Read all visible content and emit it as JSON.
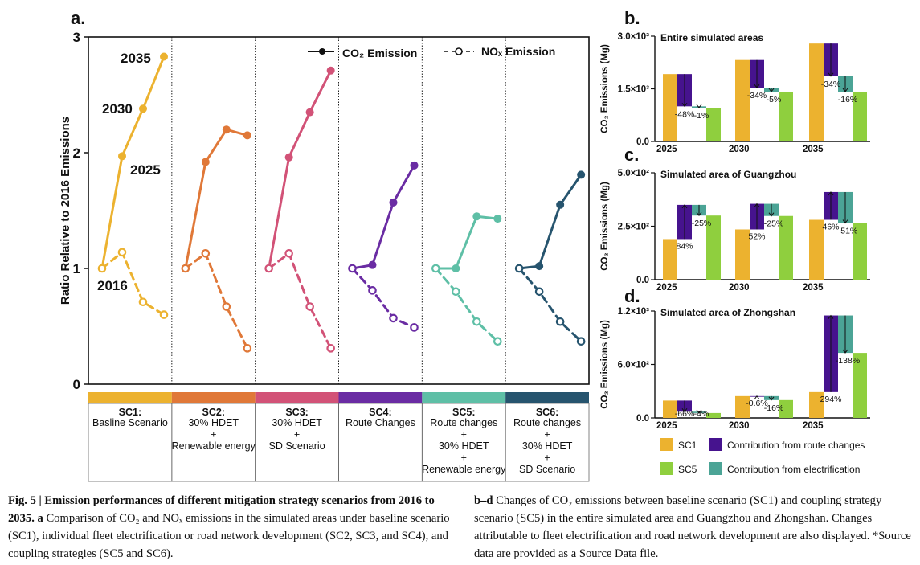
{
  "panel_a": {
    "label": "a.",
    "ylabel": "Ratio Relative to 2016 Emissions",
    "yticks": [
      "0",
      "1",
      "2",
      "3"
    ],
    "year_labels": [
      "2016",
      "2025",
      "2030",
      "2035"
    ],
    "legend": {
      "co2": "CO₂ Emission",
      "nox": "NOₓ Emission"
    },
    "scenarios": [
      {
        "code": "SC1:",
        "lines": [
          "Basline Scenario"
        ],
        "color": "#ecb22f"
      },
      {
        "code": "SC2:",
        "lines": [
          "30% HDET",
          "+",
          "Renewable energy"
        ],
        "color": "#e07838"
      },
      {
        "code": "SC3:",
        "lines": [
          "30% HDET",
          "+",
          "SD Scenario"
        ],
        "color": "#d25277"
      },
      {
        "code": "SC4:",
        "lines": [
          "Route Changes"
        ],
        "color": "#6a2ca3"
      },
      {
        "code": "SC5:",
        "lines": [
          "Route changes",
          "+",
          "30% HDET",
          "+",
          "Renewable energy"
        ],
        "color": "#5ebfa6"
      },
      {
        "code": "SC6:",
        "lines": [
          "Route changes",
          "+",
          "30% HDET",
          "+",
          "SD Scenario"
        ],
        "color": "#26546e"
      }
    ]
  },
  "panel_b": {
    "label": "b.",
    "title": "Entire simulated areas",
    "ylabel": "CO₂ Emissions (Mg)",
    "yticks": [
      "0.0",
      "1.5×10³",
      "3.0×10³"
    ]
  },
  "panel_c": {
    "label": "c.",
    "title": "Simulated area of Guangzhou",
    "ylabel": "CO₂ Emissions (Mg)",
    "yticks": [
      "0.0",
      "2.5×10²",
      "5.0×10²"
    ]
  },
  "panel_d": {
    "label": "d.",
    "title": "Simulated area of Zhongshan",
    "ylabel": "CO₂ Emissions (Mg)",
    "yticks": [
      "0.0",
      "6.0×10²",
      "1.2×10³"
    ]
  },
  "bar_legend": [
    {
      "name": "SC1",
      "color": "#ecb22f"
    },
    {
      "name": "Contribution from route changes",
      "color": "#46138e"
    },
    {
      "name": "SC5",
      "color": "#8fcf3e"
    },
    {
      "name": "Contribution from electrification",
      "color": "#4ba496"
    }
  ],
  "chart_data": [
    {
      "type": "line",
      "title": "",
      "ylabel": "Ratio Relative to 2016 Emissions",
      "ylim": [
        0,
        3
      ],
      "x": [
        2016,
        2025,
        2030,
        2035
      ],
      "panels": [
        {
          "name": "SC1",
          "series": [
            {
              "name": "CO₂ Emission",
              "values": [
                1.0,
                1.97,
                2.38,
                2.83
              ]
            },
            {
              "name": "NOₓ Emission",
              "values": [
                1.0,
                1.14,
                0.71,
                0.6
              ]
            }
          ]
        },
        {
          "name": "SC2",
          "series": [
            {
              "name": "CO₂ Emission",
              "values": [
                1.0,
                1.92,
                2.2,
                2.15
              ]
            },
            {
              "name": "NOₓ Emission",
              "values": [
                1.0,
                1.13,
                0.67,
                0.31
              ]
            }
          ]
        },
        {
          "name": "SC3",
          "series": [
            {
              "name": "CO₂ Emission",
              "values": [
                1.0,
                1.96,
                2.35,
                2.71
              ]
            },
            {
              "name": "NOₓ Emission",
              "values": [
                1.0,
                1.13,
                0.67,
                0.31
              ]
            }
          ]
        },
        {
          "name": "SC4",
          "series": [
            {
              "name": "CO₂ Emission",
              "values": [
                1.0,
                1.03,
                1.57,
                1.89
              ]
            },
            {
              "name": "NOₓ Emission",
              "values": [
                1.0,
                0.81,
                0.57,
                0.49
              ]
            }
          ]
        },
        {
          "name": "SC5",
          "series": [
            {
              "name": "CO₂ Emission",
              "values": [
                1.0,
                1.0,
                1.45,
                1.43
              ]
            },
            {
              "name": "NOₓ Emission",
              "values": [
                1.0,
                0.8,
                0.54,
                0.37
              ]
            }
          ]
        },
        {
          "name": "SC6",
          "series": [
            {
              "name": "CO₂ Emission",
              "values": [
                1.0,
                1.02,
                1.55,
                1.81
              ]
            },
            {
              "name": "NOₓ Emission",
              "values": [
                1.0,
                0.8,
                0.54,
                0.37
              ]
            }
          ]
        }
      ]
    },
    {
      "type": "bar",
      "title": "Entire simulated areas",
      "ylabel": "CO₂ Emissions (Mg)",
      "ylim": [
        0,
        3000
      ],
      "categories": [
        "2025",
        "2030",
        "2035"
      ],
      "series": [
        {
          "name": "SC1",
          "values": [
            1920,
            2320,
            2790
          ]
        },
        {
          "name": "SC5",
          "values": [
            960,
            1420,
            1420
          ]
        }
      ],
      "route_change": {
        "from": [
          1920,
          2320,
          2790
        ],
        "to": [
          1000,
          1530,
          1860
        ],
        "labels": [
          "-48%",
          "-34%",
          "-34%"
        ]
      },
      "electrification": {
        "from": [
          1000,
          1530,
          1860
        ],
        "to": [
          960,
          1420,
          1420
        ],
        "labels": [
          "-1%",
          "-5%",
          "-16%"
        ]
      }
    },
    {
      "type": "bar",
      "title": "Simulated area of Guangzhou",
      "ylabel": "CO₂ Emissions (Mg)",
      "ylim": [
        0,
        500
      ],
      "categories": [
        "2025",
        "2030",
        "2035"
      ],
      "series": [
        {
          "name": "SC1",
          "values": [
            190,
            235,
            280
          ]
        },
        {
          "name": "SC5",
          "values": [
            300,
            298,
            265
          ]
        }
      ],
      "route_change": {
        "from": [
          190,
          235,
          280
        ],
        "to": [
          350,
          355,
          410
        ],
        "labels": [
          "84%",
          "52%",
          "46%"
        ]
      },
      "electrification": {
        "from": [
          350,
          355,
          410
        ],
        "to": [
          300,
          298,
          265
        ],
        "labels": [
          "-25%",
          "-25%",
          "-51%"
        ]
      }
    },
    {
      "type": "bar",
      "title": "Simulated area of Zhongshan",
      "ylabel": "CO₂ Emissions (Mg)",
      "ylim": [
        0,
        1200
      ],
      "categories": [
        "2025",
        "2030",
        "2035"
      ],
      "series": [
        {
          "name": "SC1",
          "values": [
            195,
            245,
            290
          ]
        },
        {
          "name": "SC5",
          "values": [
            55,
            200,
            730
          ]
        }
      ],
      "route_change": {
        "from": [
          195,
          245,
          290
        ],
        "to": [
          70,
          245,
          1150
        ],
        "labels": [
          "-66%",
          "-0.6%",
          "294%"
        ]
      },
      "electrification": {
        "from": [
          70,
          245,
          1150
        ],
        "to": [
          55,
          200,
          730
        ],
        "labels": [
          "-4%",
          "-16%",
          "-138%"
        ]
      }
    }
  ],
  "caption_a": {
    "bold": "Fig. 5 | Emission performances of different mitigation strategy scenarios from 2016 to 2035.",
    "bold_a": "a",
    "text": "Comparison of CO₂ and NOₓ emissions in the simulated areas under baseline scenario (SC1), individual fleet electrification or road network development (SC2, SC3, and SC4), and coupling strategies (SC5 and SC6)."
  },
  "caption_b": {
    "bold": "b–d",
    "text": "Changes of CO₂ emissions between baseline scenario (SC1) and coupling strategy scenario (SC5) in the entire simulated area and Guangzhou and Zhongshan. Changes attributable to fleet electrification and road network development are also displayed. *Source data are provided as a Source Data file."
  }
}
